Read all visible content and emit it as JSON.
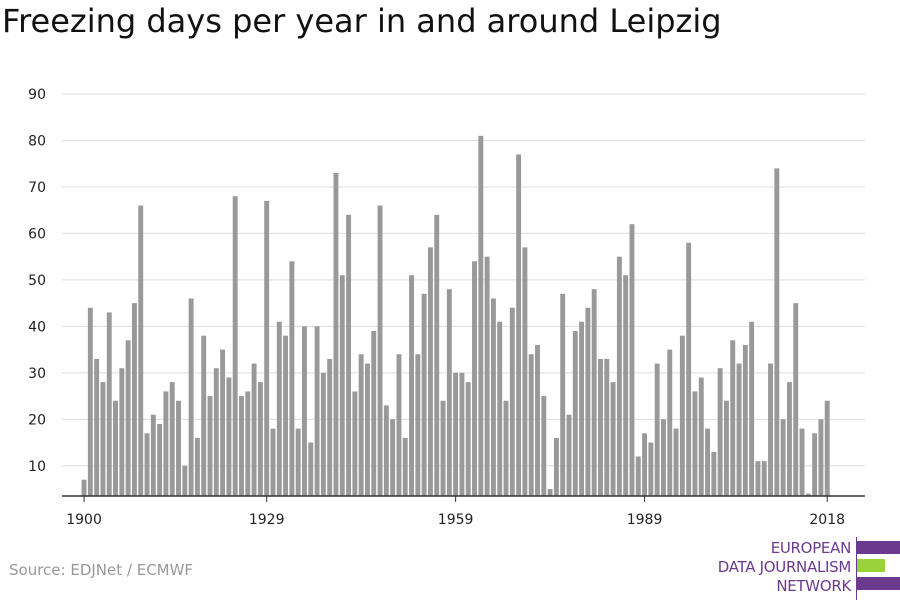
{
  "title": "Freezing days per year in and around Leipzig",
  "source": "Source: EDJNet / ECMWF",
  "logo": {
    "lines": [
      "EUROPEAN",
      "DATA JOURNALISM",
      "NETWORK"
    ],
    "colors": {
      "purple": "#6b3a8f",
      "green": "#9ad23a"
    }
  },
  "colors": {
    "bar": "#999999",
    "grid": "#dddddd",
    "axis": "#333333"
  },
  "chart_data": {
    "type": "bar",
    "title": "Freezing days per year in and around Leipzig",
    "xlabel": "",
    "ylabel": "",
    "ylim": [
      3.5,
      90
    ],
    "yticks": [
      10,
      20,
      30,
      40,
      50,
      60,
      70,
      80,
      90
    ],
    "xticks": [
      1900,
      1929,
      1959,
      1989,
      2018
    ],
    "xlim": [
      1896.5,
      2024
    ],
    "grid": true,
    "legend": "none",
    "x": [
      1900,
      1901,
      1902,
      1903,
      1904,
      1905,
      1906,
      1907,
      1908,
      1909,
      1910,
      1911,
      1912,
      1913,
      1914,
      1915,
      1916,
      1917,
      1918,
      1919,
      1920,
      1921,
      1922,
      1923,
      1924,
      1925,
      1926,
      1927,
      1928,
      1929,
      1930,
      1931,
      1932,
      1933,
      1934,
      1935,
      1936,
      1937,
      1938,
      1939,
      1940,
      1941,
      1942,
      1943,
      1944,
      1945,
      1946,
      1947,
      1948,
      1949,
      1950,
      1951,
      1952,
      1953,
      1954,
      1955,
      1956,
      1957,
      1958,
      1959,
      1960,
      1961,
      1962,
      1963,
      1964,
      1965,
      1966,
      1967,
      1968,
      1969,
      1970,
      1971,
      1972,
      1973,
      1974,
      1975,
      1976,
      1977,
      1978,
      1979,
      1980,
      1981,
      1982,
      1983,
      1984,
      1985,
      1986,
      1987,
      1988,
      1989,
      1990,
      1991,
      1992,
      1993,
      1994,
      1995,
      1996,
      1997,
      1998,
      1999,
      2000,
      2001,
      2002,
      2003,
      2004,
      2005,
      2006,
      2007,
      2008,
      2009,
      2010,
      2011,
      2012,
      2013,
      2014,
      2015,
      2016,
      2017,
      2018
    ],
    "values": [
      7,
      44,
      33,
      28,
      43,
      24,
      31,
      37,
      45,
      66,
      17,
      21,
      19,
      26,
      28,
      24,
      10,
      46,
      16,
      38,
      25,
      31,
      35,
      29,
      68,
      25,
      26,
      32,
      28,
      67,
      18,
      41,
      38,
      54,
      18,
      40,
      15,
      40,
      30,
      33,
      73,
      51,
      64,
      26,
      34,
      32,
      39,
      66,
      23,
      20,
      34,
      16,
      51,
      34,
      47,
      57,
      64,
      24,
      48,
      30,
      30,
      28,
      54,
      81,
      55,
      46,
      41,
      24,
      44,
      77,
      57,
      34,
      36,
      25,
      5,
      16,
      47,
      21,
      39,
      41,
      44,
      48,
      33,
      33,
      28,
      55,
      51,
      62,
      12,
      17,
      15,
      32,
      20,
      35,
      18,
      38,
      58,
      26,
      29,
      18,
      13,
      31,
      24,
      37,
      32,
      36,
      41,
      11,
      11,
      32,
      74,
      20,
      28,
      45,
      18,
      4,
      17,
      20,
      24
    ]
  }
}
